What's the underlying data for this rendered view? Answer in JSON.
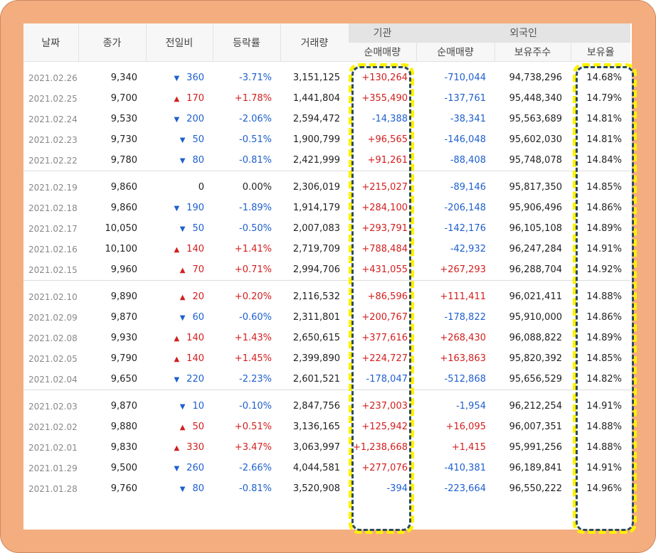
{
  "headers": {
    "date": "날짜",
    "close": "종가",
    "change": "전일비",
    "rate": "등락률",
    "volume": "거래량",
    "institution": "기관",
    "foreign": "외국인",
    "inst_net": "순매매량",
    "foreign_net": "순매매량",
    "foreign_shares": "보유주수",
    "foreign_ratio": "보유율"
  },
  "groups": [
    [
      {
        "date": "2021.02.26",
        "close": "9,340",
        "dir": "down",
        "change": "360",
        "rate": "-3.71%",
        "volume": "3,151,125",
        "inst": "+130,264",
        "foreign": "-710,044",
        "shares": "94,738,296",
        "ratio": "14.68%"
      },
      {
        "date": "2021.02.25",
        "close": "9,700",
        "dir": "up",
        "change": "170",
        "rate": "+1.78%",
        "volume": "1,441,804",
        "inst": "+355,490",
        "foreign": "-137,761",
        "shares": "95,448,340",
        "ratio": "14.79%"
      },
      {
        "date": "2021.02.24",
        "close": "9,530",
        "dir": "down",
        "change": "200",
        "rate": "-2.06%",
        "volume": "2,594,472",
        "inst": "-14,388",
        "foreign": "-38,341",
        "shares": "95,563,689",
        "ratio": "14.81%"
      },
      {
        "date": "2021.02.23",
        "close": "9,730",
        "dir": "down",
        "change": "50",
        "rate": "-0.51%",
        "volume": "1,900,799",
        "inst": "+96,565",
        "foreign": "-146,048",
        "shares": "95,602,030",
        "ratio": "14.81%"
      },
      {
        "date": "2021.02.22",
        "close": "9,780",
        "dir": "down",
        "change": "80",
        "rate": "-0.81%",
        "volume": "2,421,999",
        "inst": "+91,261",
        "foreign": "-88,408",
        "shares": "95,748,078",
        "ratio": "14.84%"
      }
    ],
    [
      {
        "date": "2021.02.19",
        "close": "9,860",
        "dir": "none",
        "change": "0",
        "rate": "0.00%",
        "volume": "2,306,019",
        "inst": "+215,027",
        "foreign": "-89,146",
        "shares": "95,817,350",
        "ratio": "14.85%"
      },
      {
        "date": "2021.02.18",
        "close": "9,860",
        "dir": "down",
        "change": "190",
        "rate": "-1.89%",
        "volume": "1,914,179",
        "inst": "+284,100",
        "foreign": "-206,148",
        "shares": "95,906,496",
        "ratio": "14.86%"
      },
      {
        "date": "2021.02.17",
        "close": "10,050",
        "dir": "down",
        "change": "50",
        "rate": "-0.50%",
        "volume": "2,007,083",
        "inst": "+293,791",
        "foreign": "-142,176",
        "shares": "96,105,108",
        "ratio": "14.89%"
      },
      {
        "date": "2021.02.16",
        "close": "10,100",
        "dir": "up",
        "change": "140",
        "rate": "+1.41%",
        "volume": "2,719,709",
        "inst": "+788,484",
        "foreign": "-42,932",
        "shares": "96,247,284",
        "ratio": "14.91%"
      },
      {
        "date": "2021.02.15",
        "close": "9,960",
        "dir": "up",
        "change": "70",
        "rate": "+0.71%",
        "volume": "2,994,706",
        "inst": "+431,055",
        "foreign": "+267,293",
        "shares": "96,288,704",
        "ratio": "14.92%"
      }
    ],
    [
      {
        "date": "2021.02.10",
        "close": "9,890",
        "dir": "up",
        "change": "20",
        "rate": "+0.20%",
        "volume": "2,116,532",
        "inst": "+86,596",
        "foreign": "+111,411",
        "shares": "96,021,411",
        "ratio": "14.88%"
      },
      {
        "date": "2021.02.09",
        "close": "9,870",
        "dir": "down",
        "change": "60",
        "rate": "-0.60%",
        "volume": "2,311,801",
        "inst": "+200,767",
        "foreign": "-178,822",
        "shares": "95,910,000",
        "ratio": "14.86%"
      },
      {
        "date": "2021.02.08",
        "close": "9,930",
        "dir": "up",
        "change": "140",
        "rate": "+1.43%",
        "volume": "2,650,615",
        "inst": "+377,616",
        "foreign": "+268,430",
        "shares": "96,088,822",
        "ratio": "14.89%"
      },
      {
        "date": "2021.02.05",
        "close": "9,790",
        "dir": "up",
        "change": "140",
        "rate": "+1.45%",
        "volume": "2,399,890",
        "inst": "+224,727",
        "foreign": "+163,863",
        "shares": "95,820,392",
        "ratio": "14.85%"
      },
      {
        "date": "2021.02.04",
        "close": "9,650",
        "dir": "down",
        "change": "220",
        "rate": "-2.23%",
        "volume": "2,601,521",
        "inst": "-178,047",
        "foreign": "-512,868",
        "shares": "95,656,529",
        "ratio": "14.82%"
      }
    ],
    [
      {
        "date": "2021.02.03",
        "close": "9,870",
        "dir": "down",
        "change": "10",
        "rate": "-0.10%",
        "volume": "2,847,756",
        "inst": "+237,003",
        "foreign": "-1,954",
        "shares": "96,212,254",
        "ratio": "14.91%"
      },
      {
        "date": "2021.02.02",
        "close": "9,880",
        "dir": "up",
        "change": "50",
        "rate": "+0.51%",
        "volume": "3,136,165",
        "inst": "+125,942",
        "foreign": "+16,095",
        "shares": "96,007,351",
        "ratio": "14.88%"
      },
      {
        "date": "2021.02.01",
        "close": "9,830",
        "dir": "up",
        "change": "330",
        "rate": "+3.47%",
        "volume": "3,063,997",
        "inst": "+1,238,668",
        "foreign": "+1,415",
        "shares": "95,991,256",
        "ratio": "14.88%"
      },
      {
        "date": "2021.01.29",
        "close": "9,500",
        "dir": "down",
        "change": "260",
        "rate": "-2.66%",
        "volume": "4,044,581",
        "inst": "+277,076",
        "foreign": "-410,381",
        "shares": "96,189,841",
        "ratio": "14.91%"
      },
      {
        "date": "2021.01.28",
        "close": "9,760",
        "dir": "down",
        "change": "80",
        "rate": "-0.81%",
        "volume": "3,520,908",
        "inst": "-394",
        "foreign": "-223,664",
        "shares": "96,550,222",
        "ratio": "14.96%"
      }
    ]
  ],
  "colors": {
    "up": "#d21e1e",
    "down": "#1e5fce",
    "highlight": "#fff200",
    "frame": "#f4ad7f"
  }
}
